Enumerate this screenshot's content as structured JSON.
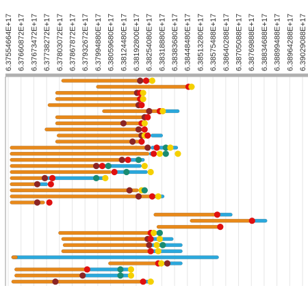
{
  "chart_data": {
    "type": "gantt",
    "x_tick_labels": [
      "6.37554664E+17",
      "6.37660872E+17",
      "6.37673472E+17",
      "6.37738272E+17",
      "6.37803072E+17",
      "6.37867872E+17",
      "6.37932672E+17",
      "6.37994880E+17",
      "6.38059680E+17",
      "6.38124480E+17",
      "6.38192800E+17",
      "6.38254080E+17",
      "6.38318880E+17",
      "6.38383680E+17",
      "6.38448480E+17",
      "6.38513280E+17",
      "6.38575488E+17",
      "6.38640288E+17",
      "6.38705088E+17",
      "6.38769888E+17",
      "6.38834688E+17",
      "6.38899488E+17",
      "6.38964288E+17",
      "6.39029088E+17"
    ],
    "x_tick_pixel_note": "",
    "colors": {
      "orange_bar": "#E8891A",
      "blue_bar": "#2BA8DC",
      "red_dot": "#E01010",
      "yellow_dot": "#F5D000",
      "darkred_dot": "#8B2525",
      "teal_dot": "#1A8C72",
      "grid": "#e6e6e6",
      "axis": "#999999"
    },
    "rows": [
      {
        "orange": [
          0.185,
          0.47
        ],
        "blue": [
          0.47,
          0.49
        ],
        "dots": [
          [
            "darkred",
            0.445
          ],
          [
            "red",
            0.465
          ],
          [
            "yellow",
            0.485
          ]
        ]
      },
      {
        "orange": [
          0.3,
          0.61
        ],
        "blue": [
          0.61,
          0.625
        ],
        "dots": [
          [
            "red",
            0.605
          ],
          [
            "yellow",
            0.615
          ]
        ]
      },
      {
        "orange": [
          0.165,
          0.45
        ],
        "dots": [
          [
            "darkred",
            0.435
          ],
          [
            "red",
            0.445
          ],
          [
            "yellow",
            0.455
          ]
        ]
      },
      {
        "orange": [
          0.165,
          0.45
        ],
        "dots": [
          [
            "red",
            0.445
          ],
          [
            "yellow",
            0.455
          ]
        ]
      },
      {
        "orange": [
          0.14,
          0.455
        ],
        "dots": [
          [
            "darkred",
            0.44
          ],
          [
            "red",
            0.45
          ]
        ]
      },
      {
        "orange": [
          0.32,
          0.51
        ],
        "blue": [
          0.51,
          0.575
        ],
        "dots": [
          [
            "darkred",
            0.475
          ],
          [
            "red",
            0.51
          ],
          [
            "yellow",
            0.52
          ]
        ]
      },
      {
        "orange": [
          0.165,
          0.47
        ],
        "dots": [
          [
            "darkred",
            0.46
          ],
          [
            "red",
            0.47
          ]
        ]
      },
      {
        "orange": [
          0.165,
          0.46
        ],
        "dots": [
          [
            "darkred",
            0.39
          ],
          [
            "red",
            0.45
          ],
          [
            "yellow",
            0.46
          ]
        ]
      },
      {
        "orange": [
          0.13,
          0.465
        ],
        "dots": [
          [
            "darkred",
            0.44
          ],
          [
            "red",
            0.46
          ]
        ]
      },
      {
        "orange": [
          0.17,
          0.48
        ],
        "blue": [
          0.48,
          0.52
        ],
        "dots": [
          [
            "darkred",
            0.45
          ],
          [
            "yellow",
            0.46
          ],
          [
            "red",
            0.47
          ]
        ]
      },
      {
        "orange": [
          0.165,
          0.455
        ],
        "dots": [
          [
            "darkred",
            0.42
          ],
          [
            "red",
            0.45
          ]
        ]
      },
      {
        "orange": [
          0.015,
          0.48
        ],
        "blue": [
          0.48,
          0.57
        ],
        "dots": [
          [
            "darkred",
            0.47
          ],
          [
            "red",
            0.5
          ],
          [
            "teal",
            0.53
          ],
          [
            "yellow",
            0.545
          ]
        ]
      },
      {
        "orange": [
          0.015,
          0.475
        ],
        "blue": [
          0.475,
          0.5
        ],
        "dots": [
          [
            "red",
            0.49
          ],
          [
            "yellow",
            0.51
          ],
          [
            "teal",
            0.53
          ],
          [
            "yellow",
            0.57
          ]
        ]
      },
      {
        "orange": [
          0.015,
          0.38
        ],
        "blue": [
          0.38,
          0.46
        ],
        "dots": [
          [
            "darkred",
            0.385
          ],
          [
            "red",
            0.405
          ],
          [
            "teal",
            0.44
          ]
        ]
      },
      {
        "orange": [
          0.015,
          0.3
        ],
        "blue": [
          0.3,
          0.45
        ],
        "dots": [
          [
            "darkred",
            0.3
          ],
          [
            "red",
            0.32
          ],
          [
            "teal",
            0.34
          ],
          [
            "yellow",
            0.46
          ]
        ]
      },
      {
        "orange": [
          0.015,
          0.35
        ],
        "blue": [
          0.35,
          0.47
        ],
        "dots": [
          [
            "red",
            0.36
          ],
          [
            "teal",
            0.4
          ],
          [
            "yellow",
            0.48
          ]
        ]
      },
      {
        "orange": [
          0.015,
          0.125
        ],
        "blue": [
          0.125,
          0.33
        ],
        "dots": [
          [
            "darkred",
            0.13
          ],
          [
            "red",
            0.155
          ],
          [
            "teal",
            0.3
          ],
          [
            "yellow",
            0.33
          ]
        ]
      },
      {
        "orange": [
          0.015,
          0.1
        ],
        "blue": [
          0.1,
          0.14
        ],
        "dots": [
          [
            "darkred",
            0.105
          ],
          [
            "red",
            0.15
          ]
        ]
      },
      {
        "orange": [
          0.015,
          0.44
        ],
        "blue": [
          0.44,
          0.47
        ],
        "dots": [
          [
            "darkred",
            0.41
          ],
          [
            "yellow",
            0.45
          ],
          [
            "teal",
            0.46
          ]
        ]
      },
      {
        "orange": [
          0.015,
          0.48
        ],
        "blue": [
          0.48,
          0.525
        ],
        "dots": [
          [
            "darkred",
            0.44
          ],
          [
            "red",
            0.485
          ],
          [
            "yellow",
            0.505
          ]
        ]
      },
      {
        "orange": [
          0.015,
          0.13
        ],
        "dots": [
          [
            "darkred",
            0.105
          ],
          [
            "red",
            0.145
          ]
        ]
      },
      {
        "empty": true
      },
      {
        "orange": [
          0.49,
          0.7
        ],
        "blue": [
          0.7,
          0.75
        ],
        "dots": [
          [
            "red",
            0.7
          ]
        ]
      },
      {
        "orange": [
          0.61,
          0.81
        ],
        "blue": [
          0.81,
          0.865
        ],
        "dots": [
          [
            "red",
            0.815
          ]
        ]
      },
      {
        "orange": [
          0.5,
          0.715
        ],
        "dots": [
          [
            "red",
            0.71
          ]
        ]
      },
      {
        "orange": [
          0.175,
          0.48
        ],
        "blue": [
          0.48,
          0.515
        ],
        "dots": [
          [
            "red",
            0.48
          ],
          [
            "yellow",
            0.49
          ],
          [
            "teal",
            0.51
          ]
        ]
      },
      {
        "orange": [
          0.185,
          0.48
        ],
        "blue": [
          0.48,
          0.555
        ],
        "dots": [
          [
            "darkred",
            0.47
          ],
          [
            "red",
            0.48
          ],
          [
            "yellow",
            0.51
          ]
        ]
      },
      {
        "orange": [
          0.19,
          0.48
        ],
        "blue": [
          0.48,
          0.585
        ],
        "dots": [
          [
            "darkred",
            0.475
          ],
          [
            "yellow",
            0.5
          ],
          [
            "teal",
            0.52
          ]
        ]
      },
      {
        "orange": [
          0.185,
          0.48
        ],
        "blue": [
          0.48,
          0.585
        ],
        "dots": [
          [
            "red",
            0.48
          ],
          [
            "yellow",
            0.505
          ]
        ]
      },
      {
        "orange": [
          0.02,
          0.04
        ],
        "blue": [
          0.02,
          0.705
        ],
        "dots": []
      },
      {
        "orange": [
          0.34,
          0.52
        ],
        "blue": [
          0.52,
          0.585
        ],
        "dots": [
          [
            "red",
            0.505
          ],
          [
            "yellow",
            0.515
          ],
          [
            "darkred",
            0.535
          ]
        ]
      },
      {
        "orange": [
          0.03,
          0.27
        ],
        "blue": [
          0.27,
          0.41
        ],
        "dots": [
          [
            "red",
            0.27
          ],
          [
            "teal",
            0.38
          ],
          [
            "yellow",
            0.415
          ]
        ]
      },
      {
        "orange": [
          0.03,
          0.25
        ],
        "blue": [
          0.25,
          0.41
        ],
        "dots": [
          [
            "darkred",
            0.255
          ],
          [
            "teal",
            0.38
          ],
          [
            "yellow",
            0.415
          ]
        ]
      },
      {
        "orange": [
          0.02,
          0.45
        ],
        "blue": [
          0.45,
          0.49
        ],
        "dots": [
          [
            "darkred",
            0.165
          ],
          [
            "red",
            0.455
          ],
          [
            "yellow",
            0.48
          ]
        ]
      }
    ]
  }
}
